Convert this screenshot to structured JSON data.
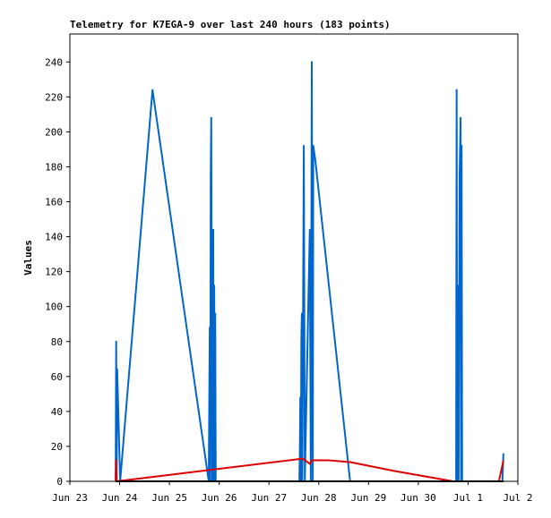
{
  "chart_data": {
    "type": "line",
    "title": "Telemetry for K7EGA-9 over last 240 hours (183 points)",
    "y_label": "Values",
    "xlim": [
      0,
      9
    ],
    "xticks": [
      {
        "value": 0,
        "label": "Jun 23"
      },
      {
        "value": 1,
        "label": "Jun 24"
      },
      {
        "value": 2,
        "label": "Jun 25"
      },
      {
        "value": 3,
        "label": "Jun 26"
      },
      {
        "value": 4,
        "label": "Jun 27"
      },
      {
        "value": 5,
        "label": "Jun 28"
      },
      {
        "value": 6,
        "label": "Jun 29"
      },
      {
        "value": 7,
        "label": "Jun 30"
      },
      {
        "value": 8,
        "label": "Jul 1"
      },
      {
        "value": 9,
        "label": "Jul 2"
      }
    ],
    "ylim": [
      0,
      256
    ],
    "yticks": [
      0,
      20,
      40,
      60,
      80,
      100,
      120,
      140,
      160,
      180,
      200,
      220,
      240
    ],
    "grid": false,
    "series": [
      {
        "color": "#0066cc",
        "x": [
          0.92,
          0.93,
          0.94,
          0.95,
          1.01,
          1.66,
          2.79,
          2.81,
          2.82,
          2.83,
          2.84,
          2.86,
          2.88,
          2.89,
          2.9,
          2.91,
          2.92,
          2.93,
          4.61,
          4.62,
          4.63,
          4.64,
          4.65,
          4.66,
          4.67,
          4.7,
          4.72,
          4.82,
          4.84,
          4.86,
          4.88,
          4.89,
          4.93,
          5.63,
          7.76,
          7.77,
          7.78,
          7.79,
          7.8,
          7.81,
          7.83,
          7.85,
          7.86,
          7.87,
          7.88,
          7.9,
          8.69,
          8.71
        ],
        "values": [
          0,
          80,
          0,
          64,
          0,
          224,
          0,
          88,
          0,
          176,
          208,
          0,
          144,
          0,
          112,
          0,
          96,
          0,
          0,
          16,
          48,
          0,
          80,
          96,
          0,
          192,
          0,
          144,
          0,
          240,
          0,
          192,
          184,
          0,
          0,
          224,
          0,
          112,
          104,
          0,
          176,
          208,
          0,
          192,
          0,
          0,
          0,
          16
        ]
      },
      {
        "color": "#dd0000",
        "x": [
          0.92,
          0.93,
          0.94,
          4.68,
          4.82,
          4.86,
          5.2,
          5.63,
          6.5,
          7.7,
          8.62,
          8.71
        ],
        "values": [
          0,
          12,
          0,
          13,
          10,
          12,
          12,
          11,
          6,
          0,
          0,
          12
        ]
      },
      {
        "color": "#000000",
        "x": [
          0.92,
          8.71
        ],
        "values": [
          0,
          0
        ]
      }
    ]
  }
}
